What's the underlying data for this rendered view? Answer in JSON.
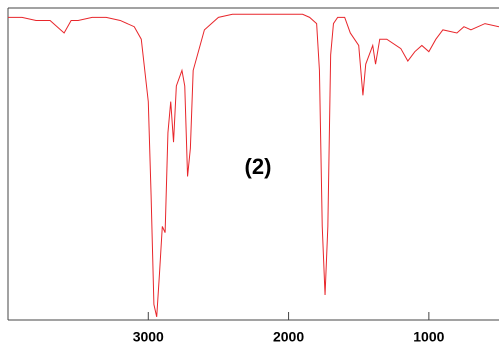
{
  "chart_data": {
    "type": "line",
    "annotation": "(2)",
    "x": [
      4000,
      3900,
      3800,
      3700,
      3650,
      3600,
      3550,
      3500,
      3400,
      3300,
      3200,
      3100,
      3050,
      3000,
      2980,
      2960,
      2940,
      2920,
      2900,
      2880,
      2860,
      2840,
      2820,
      2800,
      2760,
      2740,
      2720,
      2700,
      2680,
      2600,
      2500,
      2400,
      2200,
      2000,
      1900,
      1850,
      1800,
      1780,
      1760,
      1740,
      1720,
      1700,
      1680,
      1650,
      1600,
      1560,
      1500,
      1470,
      1450,
      1400,
      1380,
      1350,
      1300,
      1200,
      1150,
      1100,
      1050,
      1000,
      950,
      900,
      800,
      750,
      700,
      600,
      500
    ],
    "series": [
      {
        "color": "#e8262b",
        "values": [
          97,
          97,
          96,
          96,
          94,
          92,
          96,
          96,
          97,
          97,
          96,
          94,
          90,
          70,
          40,
          5,
          1,
          15,
          30,
          28,
          60,
          70,
          57,
          75,
          80,
          75,
          46,
          55,
          80,
          93,
          97,
          98,
          98,
          98,
          98,
          97,
          95,
          80,
          30,
          8,
          30,
          85,
          95,
          97,
          97,
          92,
          88,
          72,
          82,
          88,
          82,
          90,
          90,
          87,
          83,
          86,
          88,
          86,
          90,
          93,
          92,
          94,
          93,
          95,
          94
        ]
      }
    ],
    "xlim": [
      4000,
      500
    ],
    "ylim": [
      0,
      100
    ],
    "xticks": [
      3000,
      2000,
      1000
    ]
  }
}
